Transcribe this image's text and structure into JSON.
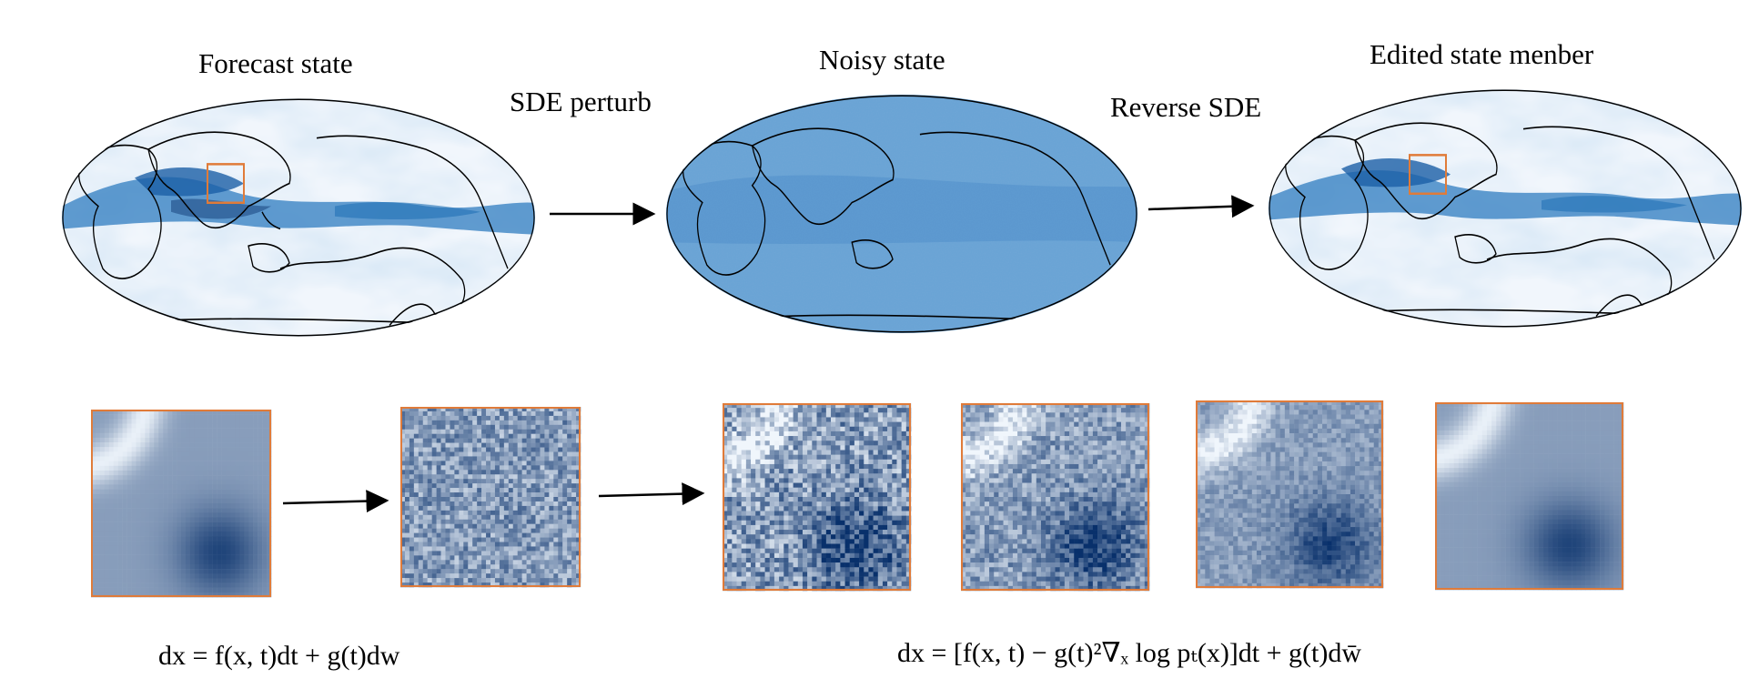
{
  "labels": {
    "forecast": "Forecast state",
    "sde_perturb": "SDE perturb",
    "noisy": "Noisy state",
    "reverse_sde": "Reverse SDE",
    "edited": "Edited state menber"
  },
  "equations": {
    "forward": "dx = f(x, t)dt + g(t)dw",
    "reverse": "dx = [f(x, t) − g(t)²∇ₓ log pₜ(x)]dt + g(t)dw̄"
  },
  "colors": {
    "dark_blue": "#08306b",
    "mid_blue": "#2171b5",
    "light_blue": "#c6dbef",
    "noisy_ocean": "#6fa6d6",
    "patch_border": "#e07b39"
  },
  "patches": [
    {
      "name": "forecast-patch",
      "noise": 0.0
    },
    {
      "name": "noisy-patch",
      "noise": 1.0
    },
    {
      "name": "denoise-step-1-patch",
      "noise": 0.75
    },
    {
      "name": "denoise-step-2-patch",
      "noise": 0.55
    },
    {
      "name": "denoise-step-3-patch",
      "noise": 0.3
    },
    {
      "name": "edited-patch",
      "noise": 0.0
    }
  ]
}
